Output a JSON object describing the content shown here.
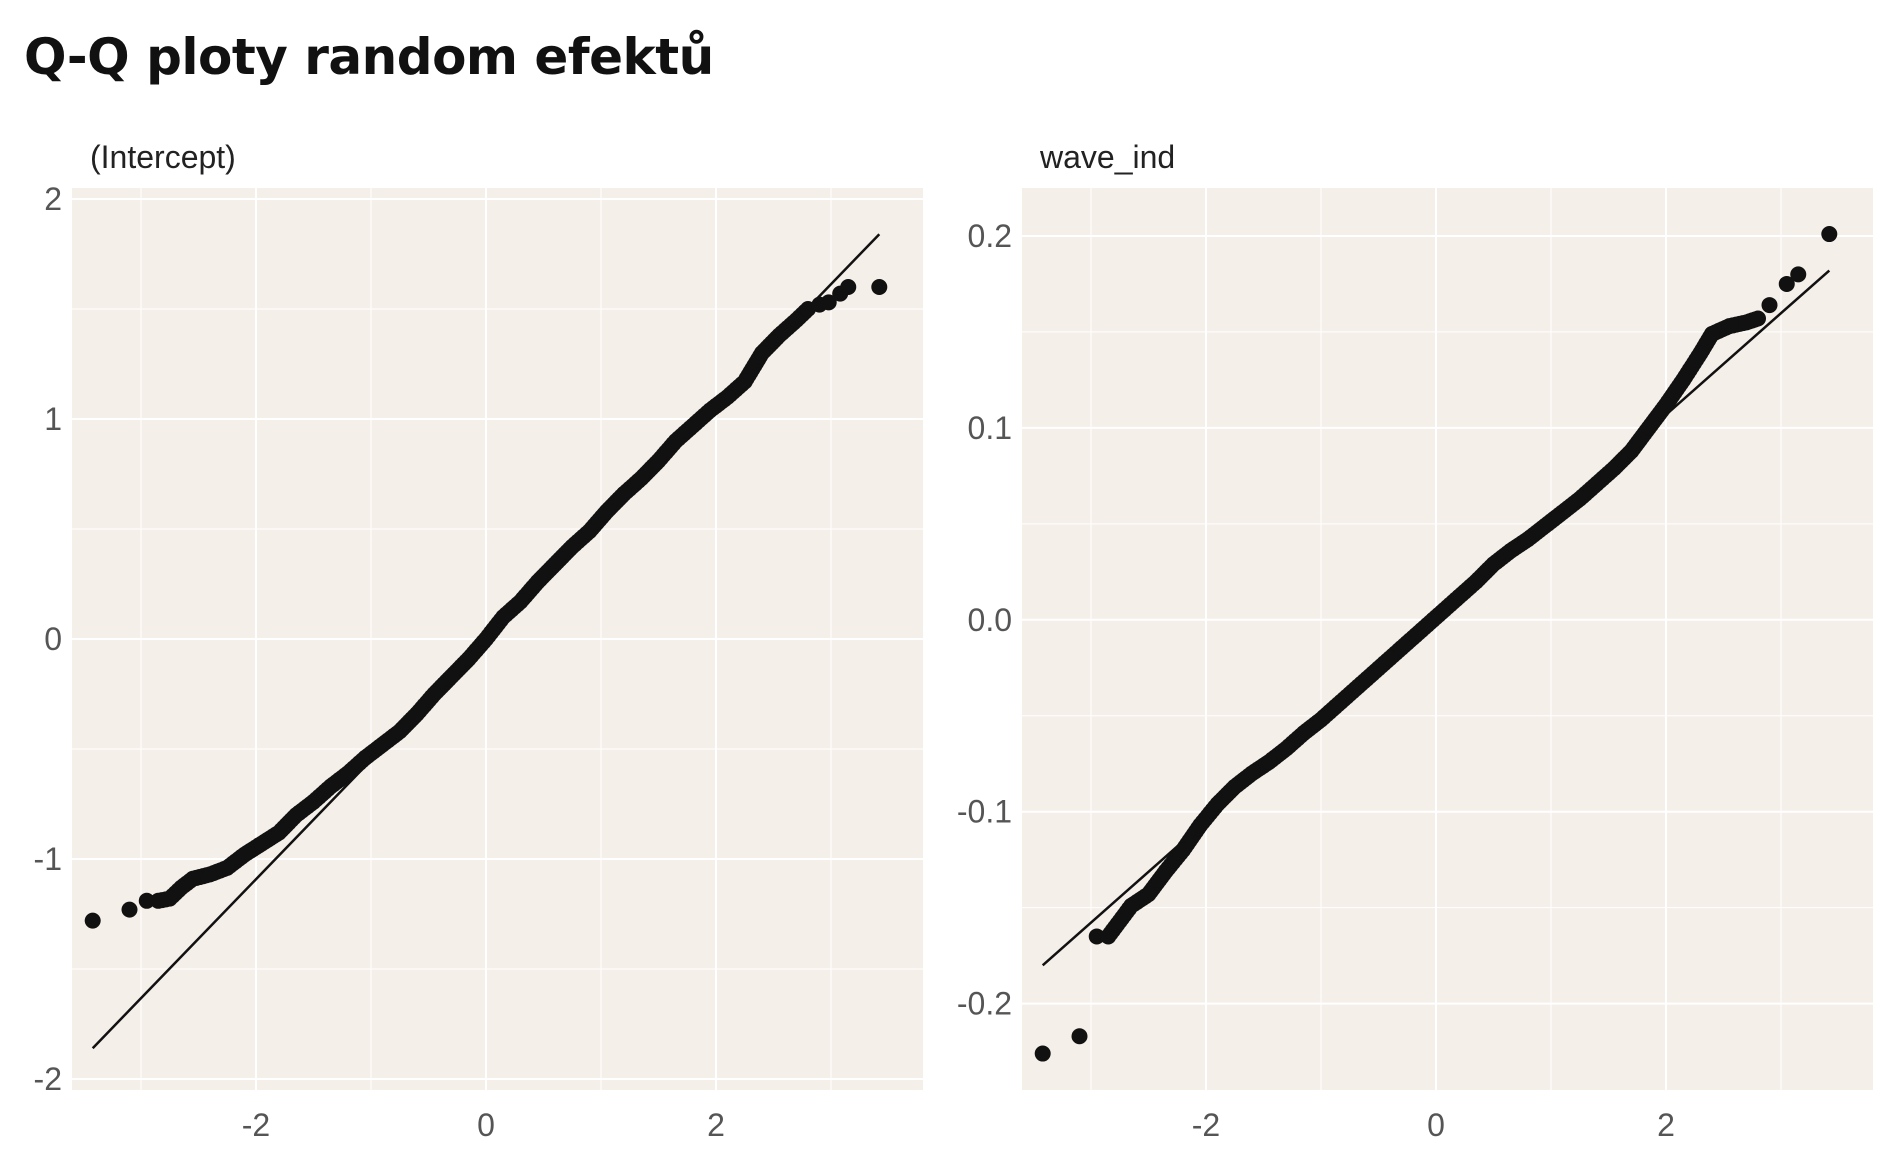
{
  "title": "Q-Q ploty random efektů",
  "colors": {
    "panel_bg": "#f5efe9",
    "grid": "#ffffff",
    "points": "#111111",
    "line": "#111111",
    "tick_text": "#555555",
    "strip_text": "#222222"
  },
  "chart_data": [
    {
      "type": "scatter",
      "panel_title": "(Intercept)",
      "xlim": [
        -3.6,
        3.8
      ],
      "ylim": [
        -2.05,
        2.05
      ],
      "xticks": [
        -2,
        0,
        2
      ],
      "xtick_labels": [
        "-2",
        "0",
        "2"
      ],
      "yticks": [
        -2,
        -1,
        0,
        1,
        2
      ],
      "ytick_labels": [
        "-2",
        "-1",
        "0",
        "1",
        "2"
      ],
      "grid": true,
      "reference_line": {
        "x": [
          -3.42,
          3.42
        ],
        "y": [
          -1.86,
          1.84
        ]
      },
      "points": [
        [
          -3.42,
          -1.28
        ],
        [
          -3.1,
          -1.23
        ],
        [
          -2.95,
          -1.19
        ],
        [
          -2.85,
          -1.19
        ],
        [
          -2.75,
          -1.18
        ],
        [
          -2.65,
          -1.13
        ],
        [
          -2.55,
          -1.09
        ],
        [
          -2.4,
          -1.07
        ],
        [
          -2.25,
          -1.04
        ],
        [
          -2.1,
          -0.98
        ],
        [
          -1.95,
          -0.93
        ],
        [
          -1.8,
          -0.88
        ],
        [
          -1.65,
          -0.8
        ],
        [
          -1.5,
          -0.74
        ],
        [
          -1.35,
          -0.67
        ],
        [
          -1.2,
          -0.61
        ],
        [
          -1.05,
          -0.54
        ],
        [
          -0.9,
          -0.48
        ],
        [
          -0.75,
          -0.42
        ],
        [
          -0.6,
          -0.34
        ],
        [
          -0.45,
          -0.25
        ],
        [
          -0.3,
          -0.17
        ],
        [
          -0.15,
          -0.09
        ],
        [
          0.0,
          0.0
        ],
        [
          0.15,
          0.1
        ],
        [
          0.3,
          0.17
        ],
        [
          0.45,
          0.26
        ],
        [
          0.6,
          0.34
        ],
        [
          0.75,
          0.42
        ],
        [
          0.9,
          0.49
        ],
        [
          1.05,
          0.58
        ],
        [
          1.2,
          0.66
        ],
        [
          1.35,
          0.73
        ],
        [
          1.5,
          0.81
        ],
        [
          1.65,
          0.9
        ],
        [
          1.8,
          0.97
        ],
        [
          1.95,
          1.04
        ],
        [
          2.1,
          1.1
        ],
        [
          2.25,
          1.17
        ],
        [
          2.4,
          1.3
        ],
        [
          2.55,
          1.38
        ],
        [
          2.7,
          1.45
        ],
        [
          2.8,
          1.5
        ],
        [
          2.9,
          1.52
        ],
        [
          2.98,
          1.53
        ],
        [
          3.08,
          1.57
        ],
        [
          3.15,
          1.6
        ],
        [
          3.42,
          1.6
        ]
      ]
    },
    {
      "type": "scatter",
      "panel_title": "wave_ind",
      "xlim": [
        -3.6,
        3.8
      ],
      "ylim": [
        -0.245,
        0.225
      ],
      "xticks": [
        -2,
        0,
        2
      ],
      "xtick_labels": [
        "-2",
        "0",
        "2"
      ],
      "yticks": [
        -0.2,
        -0.1,
        0.0,
        0.1,
        0.2
      ],
      "ytick_labels": [
        "-0.2",
        "-0.1",
        "0.0",
        "0.1",
        "0.2"
      ],
      "grid": true,
      "reference_line": {
        "x": [
          -3.42,
          3.42
        ],
        "y": [
          -0.18,
          0.182
        ]
      },
      "points": [
        [
          -3.42,
          -0.226
        ],
        [
          -3.1,
          -0.217
        ],
        [
          -2.95,
          -0.165
        ],
        [
          -2.85,
          -0.165
        ],
        [
          -2.75,
          -0.157
        ],
        [
          -2.65,
          -0.149
        ],
        [
          -2.5,
          -0.143
        ],
        [
          -2.35,
          -0.131
        ],
        [
          -2.2,
          -0.12
        ],
        [
          -2.05,
          -0.107
        ],
        [
          -1.9,
          -0.096
        ],
        [
          -1.75,
          -0.087
        ],
        [
          -1.6,
          -0.08
        ],
        [
          -1.45,
          -0.074
        ],
        [
          -1.3,
          -0.067
        ],
        [
          -1.15,
          -0.059
        ],
        [
          -1.0,
          -0.052
        ],
        [
          -0.85,
          -0.044
        ],
        [
          -0.7,
          -0.036
        ],
        [
          -0.55,
          -0.028
        ],
        [
          -0.4,
          -0.02
        ],
        [
          -0.25,
          -0.012
        ],
        [
          -0.1,
          -0.004
        ],
        [
          0.05,
          0.004
        ],
        [
          0.2,
          0.012
        ],
        [
          0.35,
          0.02
        ],
        [
          0.5,
          0.029
        ],
        [
          0.65,
          0.036
        ],
        [
          0.8,
          0.042
        ],
        [
          0.95,
          0.049
        ],
        [
          1.1,
          0.056
        ],
        [
          1.25,
          0.063
        ],
        [
          1.4,
          0.071
        ],
        [
          1.55,
          0.079
        ],
        [
          1.7,
          0.088
        ],
        [
          1.85,
          0.1
        ],
        [
          2.0,
          0.112
        ],
        [
          2.15,
          0.125
        ],
        [
          2.3,
          0.139
        ],
        [
          2.4,
          0.149
        ],
        [
          2.55,
          0.153
        ],
        [
          2.7,
          0.155
        ],
        [
          2.8,
          0.157
        ],
        [
          2.9,
          0.164
        ],
        [
          3.05,
          0.175
        ],
        [
          3.15,
          0.18
        ],
        [
          3.42,
          0.201
        ]
      ]
    }
  ]
}
